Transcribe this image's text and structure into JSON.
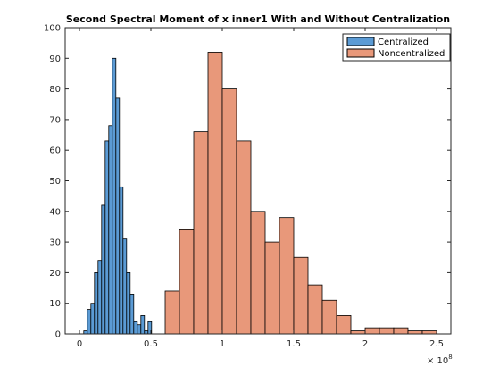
{
  "chart_data": {
    "type": "bar",
    "title": "Second Spectral Moment of x inner1 With and Without Centralization",
    "xlabel": "",
    "ylabel": "",
    "xlim": [
      -10000000,
      260000000
    ],
    "ylim": [
      0,
      100
    ],
    "x_tick_values": [
      0,
      50000000,
      100000000,
      150000000,
      200000000,
      250000000
    ],
    "x_tick_labels": [
      "0",
      "0.5",
      "1",
      "1.5",
      "2",
      "2.5"
    ],
    "x_exponent_base": "× 10",
    "x_exponent_power": "8",
    "y_tick_values": [
      0,
      10,
      20,
      30,
      40,
      50,
      60,
      70,
      80,
      90,
      100
    ],
    "y_tick_labels": [
      "0",
      "10",
      "20",
      "30",
      "40",
      "50",
      "60",
      "70",
      "80",
      "90",
      "100"
    ],
    "grid": false,
    "legend_position": "top-right",
    "series": [
      {
        "name": "Centralized",
        "color": "#5b9bd5",
        "bin_edges": [
          3000000,
          5500000,
          8000000,
          10500000,
          13000000,
          15500000,
          18000000,
          20500000,
          23000000,
          25500000,
          28000000,
          30500000,
          33000000,
          35500000,
          38000000,
          40500000,
          43000000,
          45500000,
          48000000,
          50500000,
          53000000
        ],
        "counts": [
          1,
          8,
          10,
          20,
          24,
          42,
          63,
          68,
          90,
          77,
          48,
          31,
          20,
          13,
          4,
          3,
          6,
          1,
          4,
          0
        ]
      },
      {
        "name": "Noncentralized",
        "color": "#e8987a",
        "bin_edges": [
          60000000,
          70000000,
          80000000,
          90000000,
          100000000,
          110000000,
          120000000,
          130000000,
          140000000,
          150000000,
          160000000,
          170000000,
          180000000,
          190000000,
          200000000,
          210000000,
          220000000,
          230000000,
          240000000,
          250000000
        ],
        "counts": [
          14,
          34,
          66,
          92,
          80,
          63,
          40,
          30,
          38,
          25,
          16,
          11,
          6,
          1,
          2,
          2,
          2,
          1,
          1
        ]
      }
    ]
  }
}
